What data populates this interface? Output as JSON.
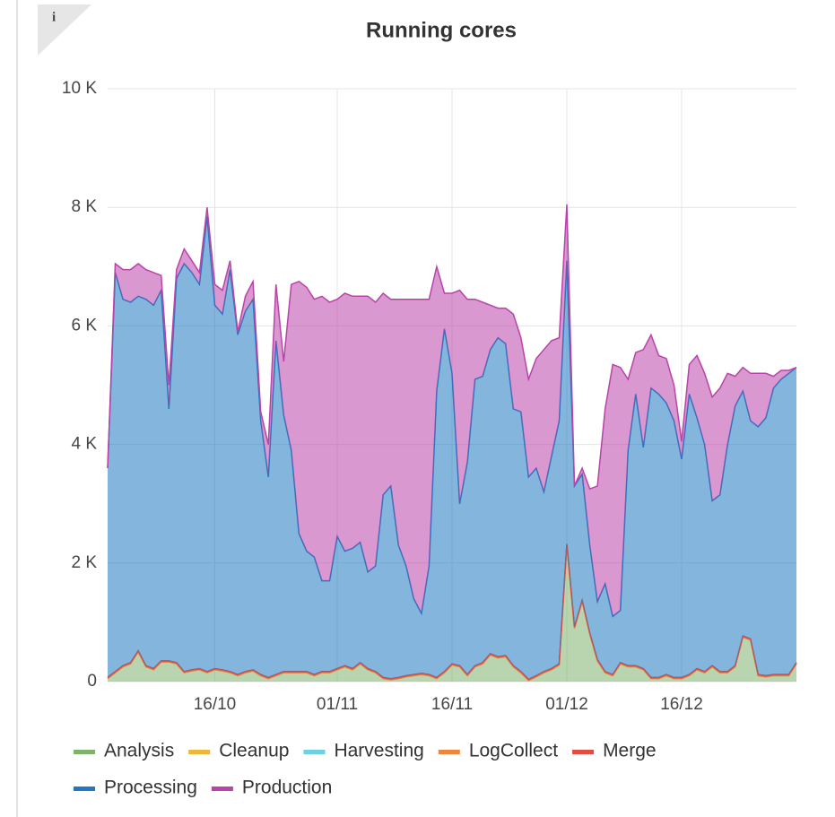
{
  "chart_data": {
    "type": "stacked_area",
    "title": "Running cores",
    "x": [
      "02/10",
      "03/10",
      "04/10",
      "05/10",
      "06/10",
      "07/10",
      "08/10",
      "09/10",
      "10/10",
      "11/10",
      "12/10",
      "13/10",
      "14/10",
      "15/10",
      "16/10",
      "17/10",
      "18/10",
      "19/10",
      "20/10",
      "21/10",
      "22/10",
      "23/10",
      "24/10",
      "25/10",
      "26/10",
      "27/10",
      "28/10",
      "29/10",
      "30/10",
      "31/10",
      "01/11",
      "02/11",
      "03/11",
      "04/11",
      "05/11",
      "06/11",
      "07/11",
      "08/11",
      "09/11",
      "10/11",
      "11/11",
      "12/11",
      "13/11",
      "14/11",
      "15/11",
      "16/11",
      "17/11",
      "18/11",
      "19/11",
      "20/11",
      "21/11",
      "22/11",
      "23/11",
      "24/11",
      "25/11",
      "26/11",
      "27/11",
      "28/11",
      "29/11",
      "30/11",
      "01/12",
      "02/12",
      "03/12",
      "04/12",
      "05/12",
      "06/12",
      "07/12",
      "08/12",
      "09/12",
      "10/12",
      "11/12",
      "12/12",
      "13/12",
      "14/12",
      "15/12",
      "16/12",
      "17/12",
      "18/12",
      "19/12",
      "20/12",
      "21/12",
      "22/12",
      "23/12",
      "24/12",
      "25/12",
      "26/12",
      "27/12",
      "28/12",
      "29/12",
      "30/12",
      "31/12"
    ],
    "xlim": [
      "02/10",
      "31/12"
    ],
    "xticks": [
      "16/10",
      "01/11",
      "16/11",
      "01/12",
      "16/12"
    ],
    "ylim": [
      0,
      10000
    ],
    "yticks": [
      0,
      {
        "value": 2000,
        "label": "2 K"
      },
      {
        "value": 4000,
        "label": "4 K"
      },
      {
        "value": 6000,
        "label": "6 K"
      },
      {
        "value": 8000,
        "label": "8 K"
      },
      {
        "value": 10000,
        "label": "10 K"
      }
    ],
    "grid": true,
    "legend": "bottom",
    "series": [
      {
        "name": "Analysis",
        "color": "#7eb26d",
        "values": [
          50,
          150,
          250,
          300,
          500,
          250,
          200,
          330,
          330,
          300,
          150,
          180,
          200,
          150,
          200,
          180,
          150,
          100,
          150,
          180,
          100,
          50,
          100,
          150,
          150,
          150,
          150,
          100,
          150,
          150,
          200,
          250,
          200,
          300,
          200,
          150,
          50,
          30,
          50,
          80,
          100,
          120,
          100,
          50,
          150,
          280,
          250,
          100,
          250,
          300,
          450,
          400,
          420,
          250,
          150,
          20,
          80,
          150,
          200,
          280,
          2300,
          900,
          1350,
          800,
          350,
          150,
          100,
          300,
          250,
          250,
          200,
          50,
          50,
          100,
          50,
          50,
          100,
          200,
          150,
          250,
          150,
          150,
          250,
          750,
          700,
          100,
          80,
          100,
          100,
          100,
          300
        ]
      },
      {
        "name": "Cleanup",
        "color": "#eab839",
        "values": [
          0,
          0,
          0,
          0,
          0,
          0,
          0,
          0,
          0,
          0,
          0,
          0,
          0,
          0,
          0,
          0,
          0,
          0,
          0,
          0,
          0,
          0,
          0,
          0,
          0,
          0,
          0,
          0,
          0,
          0,
          0,
          0,
          0,
          0,
          0,
          0,
          0,
          0,
          0,
          0,
          0,
          0,
          0,
          0,
          0,
          0,
          0,
          0,
          0,
          0,
          0,
          0,
          0,
          0,
          0,
          0,
          0,
          0,
          0,
          0,
          0,
          0,
          0,
          0,
          0,
          0,
          0,
          0,
          0,
          0,
          0,
          0,
          0,
          0,
          0,
          0,
          0,
          0,
          0,
          0,
          0,
          0,
          0,
          0,
          0,
          0,
          0,
          0,
          0,
          0,
          0
        ]
      },
      {
        "name": "Harvesting",
        "color": "#6ed0e0",
        "values": [
          0,
          0,
          0,
          0,
          0,
          0,
          0,
          0,
          0,
          0,
          0,
          0,
          0,
          0,
          0,
          0,
          0,
          0,
          0,
          0,
          0,
          0,
          0,
          0,
          0,
          0,
          0,
          0,
          0,
          0,
          0,
          0,
          0,
          0,
          0,
          0,
          0,
          0,
          0,
          0,
          0,
          0,
          0,
          0,
          0,
          0,
          0,
          0,
          0,
          0,
          0,
          0,
          0,
          0,
          0,
          0,
          0,
          0,
          0,
          0,
          0,
          0,
          0,
          0,
          0,
          0,
          0,
          0,
          0,
          0,
          0,
          0,
          0,
          0,
          0,
          0,
          0,
          0,
          0,
          0,
          0,
          0,
          0,
          0,
          0,
          0,
          0,
          0,
          0,
          0,
          0
        ]
      },
      {
        "name": "LogCollect",
        "color": "#ef843c",
        "values": [
          0,
          0,
          0,
          0,
          0,
          0,
          0,
          0,
          0,
          0,
          0,
          0,
          0,
          0,
          0,
          0,
          0,
          0,
          0,
          0,
          0,
          0,
          0,
          0,
          0,
          0,
          0,
          0,
          0,
          0,
          0,
          0,
          0,
          0,
          0,
          0,
          0,
          0,
          0,
          0,
          0,
          0,
          0,
          0,
          0,
          0,
          0,
          0,
          0,
          0,
          0,
          0,
          0,
          0,
          0,
          0,
          0,
          0,
          0,
          0,
          0,
          0,
          0,
          0,
          0,
          0,
          0,
          0,
          0,
          0,
          0,
          0,
          0,
          0,
          0,
          0,
          0,
          0,
          0,
          0,
          0,
          0,
          0,
          0,
          0,
          0,
          0,
          0,
          0,
          0,
          0
        ]
      },
      {
        "name": "Merge",
        "color": "#e24d42",
        "values": [
          20,
          20,
          20,
          20,
          20,
          20,
          20,
          20,
          20,
          20,
          20,
          20,
          20,
          20,
          20,
          20,
          20,
          20,
          20,
          20,
          20,
          20,
          20,
          20,
          20,
          20,
          20,
          20,
          20,
          20,
          20,
          20,
          20,
          20,
          20,
          20,
          20,
          20,
          20,
          20,
          20,
          20,
          20,
          20,
          20,
          20,
          20,
          20,
          20,
          20,
          20,
          20,
          20,
          20,
          20,
          20,
          20,
          20,
          20,
          20,
          20,
          20,
          20,
          20,
          20,
          20,
          20,
          20,
          20,
          20,
          20,
          20,
          20,
          20,
          20,
          20,
          20,
          20,
          20,
          20,
          20,
          20,
          20,
          20,
          20,
          20,
          20,
          20,
          20,
          20,
          20
        ]
      },
      {
        "name": "Processing",
        "color": "#1f78c1",
        "values": [
          3530,
          6730,
          6180,
          6080,
          5980,
          6180,
          6130,
          6250,
          4250,
          6480,
          6880,
          6700,
          6480,
          7680,
          6130,
          6000,
          6780,
          5730,
          6080,
          6250,
          4280,
          3380,
          5630,
          4330,
          3730,
          2330,
          2030,
          1980,
          1530,
          1530,
          2230,
          1930,
          2030,
          2030,
          1630,
          1780,
          3080,
          3250,
          2230,
          1850,
          1280,
          1010,
          1830,
          4830,
          5780,
          4900,
          2730,
          3580,
          4830,
          4830,
          5130,
          5380,
          5260,
          4330,
          4380,
          3410,
          3500,
          3030,
          3580,
          4100,
          4780,
          2380,
          2130,
          1480,
          980,
          1480,
          980,
          880,
          3630,
          4580,
          3730,
          4880,
          4780,
          4580,
          4330,
          3680,
          4730,
          4230,
          3830,
          2780,
          2980,
          3830,
          4380,
          4130,
          3680,
          4180,
          4350,
          4830,
          4980,
          5080,
          4980
        ]
      },
      {
        "name": "Production",
        "color": "#ba43a9",
        "values": [
          0,
          150,
          500,
          550,
          550,
          500,
          550,
          250,
          400,
          150,
          250,
          200,
          200,
          150,
          350,
          400,
          150,
          50,
          250,
          300,
          150,
          550,
          950,
          900,
          2800,
          4250,
          4450,
          4350,
          4800,
          4700,
          4000,
          4350,
          4250,
          4150,
          4650,
          4450,
          3400,
          3150,
          4150,
          4500,
          5050,
          5300,
          4500,
          2100,
          600,
          1350,
          3600,
          2750,
          1350,
          1250,
          750,
          500,
          600,
          1600,
          1250,
          1650,
          1850,
          2400,
          1950,
          1400,
          950,
          0,
          100,
          950,
          1950,
          2950,
          4250,
          4100,
          1200,
          700,
          1650,
          900,
          650,
          750,
          600,
          300,
          500,
          1050,
          1200,
          1750,
          1800,
          1200,
          500,
          400,
          800,
          900,
          750,
          200,
          150,
          50,
          0
        ]
      }
    ]
  }
}
